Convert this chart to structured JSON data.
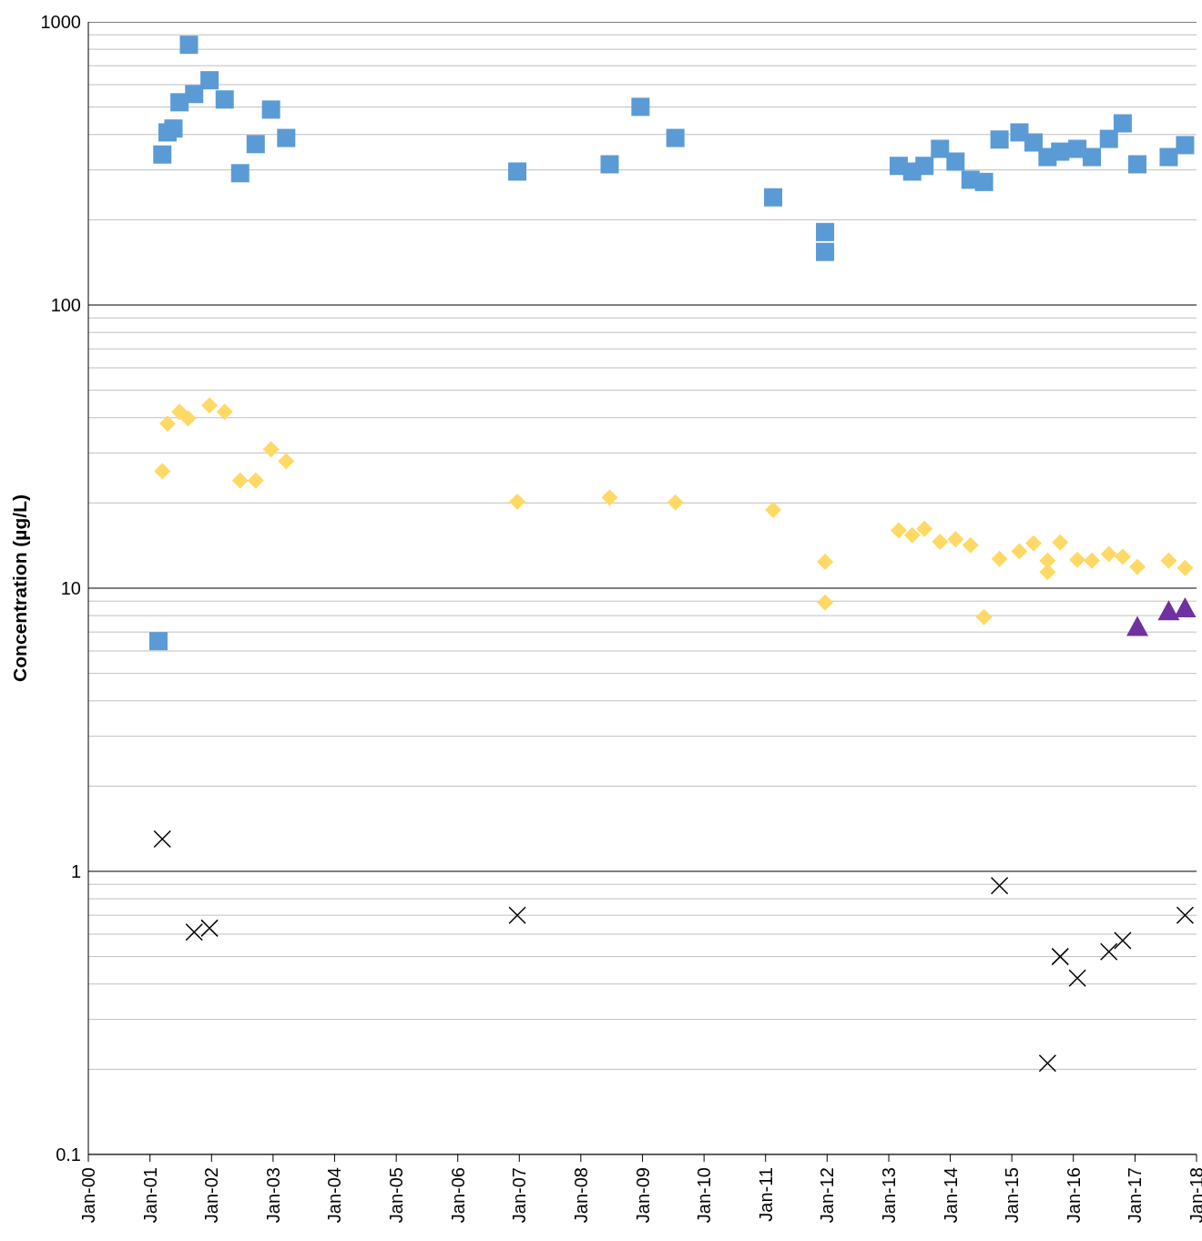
{
  "chart_data": {
    "type": "scatter",
    "ylabel": "Concentration (µg/L)",
    "log": "y",
    "grid": "y",
    "xlim": [
      "2000-01",
      "2018-01"
    ],
    "xticks": [
      {
        "value": "2000-01",
        "label": "Jan-00"
      },
      {
        "value": "2001-01",
        "label": "Jan-01"
      },
      {
        "value": "2002-01",
        "label": "Jan-02"
      },
      {
        "value": "2003-01",
        "label": "Jan-03"
      },
      {
        "value": "2004-01",
        "label": "Jan-04"
      },
      {
        "value": "2005-01",
        "label": "Jan-05"
      },
      {
        "value": "2006-01",
        "label": "Jan-06"
      },
      {
        "value": "2007-01",
        "label": "Jan-07"
      },
      {
        "value": "2008-01",
        "label": "Jan-08"
      },
      {
        "value": "2009-01",
        "label": "Jan-09"
      },
      {
        "value": "2010-01",
        "label": "Jan-10"
      },
      {
        "value": "2011-01",
        "label": "Jan-11"
      },
      {
        "value": "2012-01",
        "label": "Jan-12"
      },
      {
        "value": "2013-01",
        "label": "Jan-13"
      },
      {
        "value": "2014-01",
        "label": "Jan-14"
      },
      {
        "value": "2015-01",
        "label": "Jan-15"
      },
      {
        "value": "2016-01",
        "label": "Jan-16"
      },
      {
        "value": "2017-01",
        "label": "Jan-17"
      },
      {
        "value": "2018-01",
        "label": "Jan-18"
      }
    ],
    "ylim": [
      0.1,
      1000
    ],
    "yticks": [
      0.1,
      {
        "value": 0.2,
        "label": null
      },
      {
        "value": 0.3,
        "label": null
      },
      {
        "value": 0.4,
        "label": null
      },
      {
        "value": 0.5,
        "label": null
      },
      {
        "value": 0.6,
        "label": null
      },
      {
        "value": 0.7,
        "label": null
      },
      {
        "value": 0.8,
        "label": null
      },
      {
        "value": 0.9,
        "label": null
      },
      1,
      {
        "value": 2,
        "label": null
      },
      {
        "value": 3,
        "label": null
      },
      {
        "value": 4,
        "label": null
      },
      {
        "value": 5,
        "label": null
      },
      {
        "value": 6,
        "label": null
      },
      {
        "value": 7,
        "label": null
      },
      {
        "value": 8,
        "label": null
      },
      {
        "value": 9,
        "label": null
      },
      10,
      {
        "value": 20,
        "label": null
      },
      {
        "value": 30,
        "label": null
      },
      {
        "value": 40,
        "label": null
      },
      {
        "value": 50,
        "label": null
      },
      {
        "value": 60,
        "label": null
      },
      {
        "value": 70,
        "label": null
      },
      {
        "value": 80,
        "label": null
      },
      {
        "value": 90,
        "label": null
      },
      100,
      {
        "value": 200,
        "label": null
      },
      {
        "value": 300,
        "label": null
      },
      {
        "value": 400,
        "label": null
      },
      {
        "value": 500,
        "label": null
      },
      {
        "value": 600,
        "label": null
      },
      {
        "value": 700,
        "label": null
      },
      {
        "value": 800,
        "label": null
      },
      {
        "value": 900,
        "label": null
      },
      1000
    ],
    "series": [
      {
        "color": "#5b9bd5",
        "marker": "square",
        "x": [
          "2001-02-20",
          "2001-03-15",
          "2001-04-15",
          "2001-05-20",
          "2001-06-25",
          "2001-08-20",
          "2001-09-20",
          "2001-12-20",
          "2002-03-20",
          "2002-06-20",
          "2002-09-20",
          "2002-12-20",
          "2003-03-20",
          "2006-12-20",
          "2008-06-20",
          "2008-12-20",
          "2009-07-15",
          "2011-02-15",
          "2011-12-20",
          "2011-12-20",
          "2013-03-01",
          "2013-05-20",
          "2013-08-01",
          "2013-11-01",
          "2014-02-01",
          "2014-05-01",
          "2014-07-20",
          "2014-10-20",
          "2015-02-15",
          "2015-05-10",
          "2015-08-01",
          "2015-10-15",
          "2016-01-25",
          "2016-04-20",
          "2016-07-30",
          "2016-10-20",
          "2017-01-15",
          "2017-07-20",
          "2017-10-25"
        ],
        "values": [
          6.5,
          340,
          407,
          420,
          520,
          830,
          556,
          622,
          532,
          292,
          370,
          490,
          389,
          296,
          314,
          501,
          389,
          240,
          181,
          154,
          310,
          296,
          310,
          356,
          321,
          277,
          272,
          384,
          407,
          375,
          333,
          348,
          356,
          333,
          386,
          438,
          314,
          333,
          367
        ]
      },
      {
        "color": "#ffd966",
        "marker": "diamond",
        "x": [
          "2001-03-15",
          "2001-04-15",
          "2001-06-25",
          "2001-08-15",
          "2001-12-20",
          "2002-03-20",
          "2002-06-20",
          "2002-09-20",
          "2002-12-20",
          "2003-03-20",
          "2006-12-20",
          "2008-06-20",
          "2009-07-15",
          "2011-02-15",
          "2011-12-20",
          "2011-12-20",
          "2013-03-01",
          "2013-05-20",
          "2013-08-01",
          "2013-11-01",
          "2014-02-01",
          "2014-05-01",
          "2014-07-20",
          "2014-10-20",
          "2015-02-15",
          "2015-05-10",
          "2015-08-01",
          "2015-08-01",
          "2015-10-15",
          "2016-01-25",
          "2016-04-20",
          "2016-07-30",
          "2016-10-20",
          "2017-01-15",
          "2017-07-20",
          "2017-10-25"
        ],
        "values": [
          25.9,
          38.1,
          42,
          39.8,
          44.2,
          42,
          24,
          24,
          30.9,
          28.1,
          20.2,
          20.9,
          20.1,
          18.9,
          12.4,
          8.9,
          16,
          15.4,
          16.2,
          14.6,
          14.9,
          14.2,
          7.9,
          12.7,
          13.5,
          14.4,
          12.5,
          11.4,
          14.5,
          12.6,
          12.5,
          13.2,
          12.9,
          11.9,
          12.5,
          11.8
        ]
      },
      {
        "color": "#7030a0",
        "marker": "triangle",
        "x": [
          "2017-01-15",
          "2017-07-20",
          "2017-10-25"
        ],
        "values": [
          7.3,
          8.3,
          8.5
        ]
      },
      {
        "color": "#000000",
        "marker": "cross",
        "x": [
          "2001-03-15",
          "2001-09-20",
          "2001-12-20",
          "2006-12-20",
          "2014-10-20",
          "2015-08-01",
          "2015-10-15",
          "2016-01-25",
          "2016-07-30",
          "2016-10-20",
          "2017-10-25"
        ],
        "values": [
          1.3,
          0.61,
          0.63,
          0.7,
          0.89,
          0.21,
          0.5,
          0.42,
          0.52,
          0.57,
          0.7
        ]
      }
    ]
  }
}
